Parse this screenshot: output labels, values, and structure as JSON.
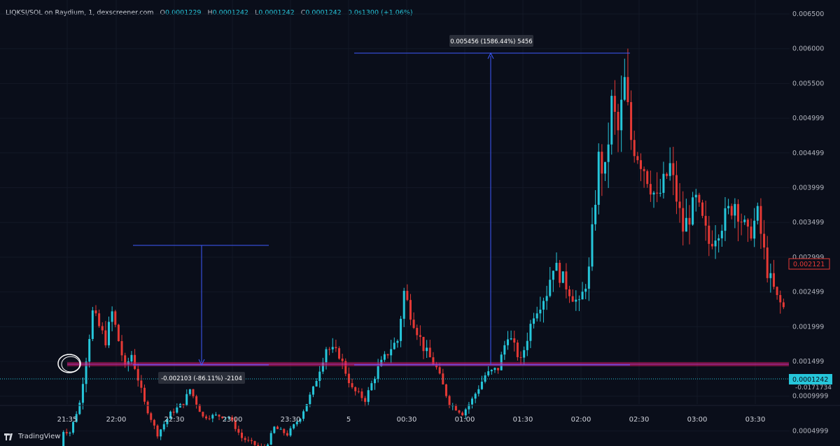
{
  "header": {
    "symbol": "LIQKSI/SOL on Raydium, 1, dexscreener.com",
    "open_label": "O",
    "open": "0.0001229",
    "high_label": "H",
    "high": "0.0001242",
    "low_label": "L",
    "low": "0.0001242",
    "close_label": "C",
    "close": "0.0001242",
    "change": "0.0s1300 (+1.06%)"
  },
  "branding": {
    "name": "TradingView",
    "icon": "tradingview-logo-icon"
  },
  "colors": {
    "background": "#0a0e1a",
    "up": "#26c6da",
    "down": "#e53935",
    "measure": "#3d5afe",
    "support": "#c2185b"
  },
  "chart_data": {
    "type": "candlestick",
    "y_ticks": [
      "0.006500",
      "0.006000",
      "0.005500",
      "0.004999",
      "0.004499",
      "0.003999",
      "0.003499",
      "0.002999",
      "0.002499",
      "0.001999",
      "0.001499",
      "0.0009999",
      "0.0004999"
    ],
    "x_ticks": [
      "21:35",
      "22:00",
      "22:30",
      "23:00",
      "23:30",
      "5",
      "00:30",
      "01:00",
      "01:30",
      "02:00",
      "02:30",
      "03:00",
      "03:30"
    ],
    "price_close_label": "0.002121",
    "price_current_label": "0.0001242",
    "price_current_sublabel": "-0.0171734",
    "measure_up_label": "0.005456 (1586.44%) 5456",
    "measure_down_label": "-0.002103 (-86.11%) -2104",
    "series_path": [
      [
        0,
        0.00012
      ],
      [
        1,
        0.0005
      ],
      [
        3,
        0.00048
      ],
      [
        6,
        0.0009
      ],
      [
        10,
        0.0022
      ],
      [
        14,
        0.0018
      ],
      [
        16,
        0.0022
      ],
      [
        20,
        0.0014
      ],
      [
        22,
        0.0016
      ],
      [
        26,
        0.0009
      ],
      [
        30,
        0.00045
      ],
      [
        34,
        0.00075
      ],
      [
        38,
        0.0009
      ],
      [
        40,
        0.0011
      ],
      [
        44,
        0.0007
      ],
      [
        48,
        0.00072
      ],
      [
        52,
        0.0007
      ],
      [
        56,
        0.0004
      ],
      [
        60,
        0.0003
      ],
      [
        63,
        0.00022
      ],
      [
        66,
        0.00055
      ],
      [
        70,
        0.00045
      ],
      [
        74,
        0.0007
      ],
      [
        78,
        0.0011
      ],
      [
        82,
        0.0017
      ],
      [
        86,
        0.0016
      ],
      [
        90,
        0.0011
      ],
      [
        94,
        0.00095
      ],
      [
        98,
        0.0014
      ],
      [
        102,
        0.0017
      ],
      [
        104,
        0.0018
      ],
      [
        106,
        0.0025
      ],
      [
        108,
        0.0022
      ],
      [
        112,
        0.0017
      ],
      [
        116,
        0.0014
      ],
      [
        120,
        0.0009
      ],
      [
        124,
        0.00075
      ],
      [
        127,
        0.00095
      ],
      [
        131,
        0.0013
      ],
      [
        135,
        0.0014
      ],
      [
        138,
        0.0019
      ],
      [
        142,
        0.0015
      ],
      [
        146,
        0.0022
      ],
      [
        150,
        0.0025
      ],
      [
        152,
        0.0029
      ],
      [
        156,
        0.0026
      ],
      [
        160,
        0.0023
      ],
      [
        163,
        0.0028
      ],
      [
        166,
        0.0044
      ],
      [
        168,
        0.0042
      ],
      [
        170,
        0.0052
      ],
      [
        172,
        0.0048
      ],
      [
        174,
        0.0055
      ],
      [
        176,
        0.0047
      ],
      [
        180,
        0.0043
      ],
      [
        184,
        0.0038
      ],
      [
        188,
        0.0043
      ],
      [
        192,
        0.0034
      ],
      [
        196,
        0.0038
      ],
      [
        200,
        0.0032
      ],
      [
        204,
        0.0035
      ],
      [
        208,
        0.0038
      ],
      [
        212,
        0.0033
      ],
      [
        215,
        0.0036
      ],
      [
        218,
        0.0028
      ],
      [
        221,
        0.0024
      ],
      [
        224,
        0.0022
      ]
    ],
    "axis_price_ticks": [
      0.0065,
      0.006,
      0.0055,
      0.005,
      0.0045,
      0.004,
      0.0035,
      0.003,
      0.0025,
      0.002,
      0.0015,
      0.001,
      0.0005
    ]
  }
}
